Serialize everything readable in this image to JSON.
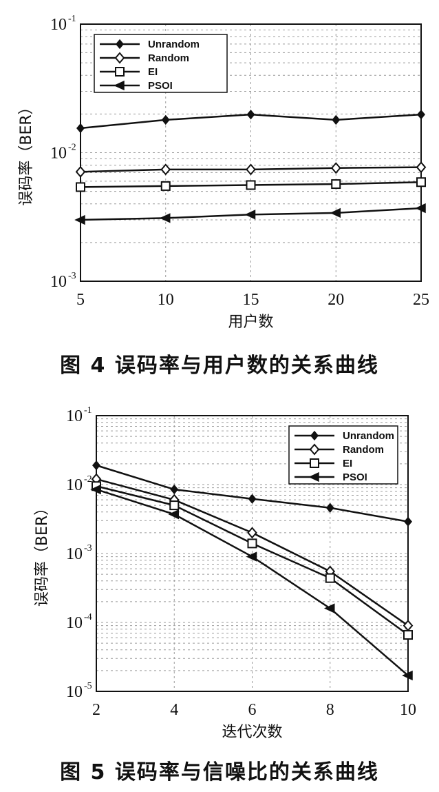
{
  "captions": {
    "fig4": "图 4   误码率与用户数的关系曲线",
    "fig5": "图 5  误码率与信噪比的关系曲线"
  },
  "chart_data": [
    {
      "type": "line",
      "xlabel": "用户数",
      "ylabel": "误码率（BER）",
      "yscale": "log",
      "xlim": [
        5,
        25
      ],
      "ylim": [
        0.001,
        0.1
      ],
      "xticks": [
        5,
        10,
        15,
        20,
        25
      ],
      "yticks": [
        {
          "base": "10",
          "exp": "-1",
          "value": 0.1
        },
        {
          "base": "10",
          "exp": "-2",
          "value": 0.01
        },
        {
          "base": "10",
          "exp": "-3",
          "value": 0.001
        }
      ],
      "grid": true,
      "legend_position": "top-left",
      "x": [
        5,
        10,
        15,
        20,
        25
      ],
      "series": [
        {
          "name": "Unrandom",
          "marker": "filled-diamond",
          "values": [
            0.0155,
            0.018,
            0.0198,
            0.018,
            0.0198
          ]
        },
        {
          "name": "Random",
          "marker": "open-diamond",
          "values": [
            0.0071,
            0.0074,
            0.0074,
            0.0076,
            0.0077
          ]
        },
        {
          "name": "EI",
          "marker": "open-square",
          "values": [
            0.0054,
            0.0055,
            0.0056,
            0.0057,
            0.0059
          ]
        },
        {
          "name": "PSOI",
          "marker": "left-triangle",
          "values": [
            0.003,
            0.0031,
            0.0033,
            0.0034,
            0.0037
          ]
        }
      ]
    },
    {
      "type": "line",
      "xlabel": "迭代次数",
      "ylabel": "误码率（BER）",
      "yscale": "log",
      "xlim": [
        2,
        10
      ],
      "ylim": [
        1e-05,
        0.1
      ],
      "xticks": [
        2,
        4,
        6,
        8,
        10
      ],
      "yticks": [
        {
          "base": "10",
          "exp": "-1",
          "value": 0.1
        },
        {
          "base": "10",
          "exp": "-2",
          "value": 0.01
        },
        {
          "base": "10",
          "exp": "-3",
          "value": 0.001
        },
        {
          "base": "10",
          "exp": "-4",
          "value": 0.0001
        },
        {
          "base": "10",
          "exp": "-5",
          "value": 1e-05
        }
      ],
      "grid": true,
      "legend_position": "top-right",
      "x": [
        2,
        4,
        6,
        8,
        10
      ],
      "series": [
        {
          "name": "Unrandom",
          "marker": "filled-diamond",
          "values": [
            0.019,
            0.0085,
            0.0062,
            0.0046,
            0.0029
          ]
        },
        {
          "name": "Random",
          "marker": "open-diamond",
          "values": [
            0.012,
            0.006,
            0.002,
            0.00055,
            9e-05
          ]
        },
        {
          "name": "EI",
          "marker": "open-square",
          "values": [
            0.0095,
            0.005,
            0.0014,
            0.00044,
            6.6e-05
          ]
        },
        {
          "name": "PSOI",
          "marker": "left-triangle",
          "values": [
            0.0085,
            0.0037,
            0.0009,
            0.00016,
            1.7e-05
          ]
        }
      ]
    }
  ]
}
